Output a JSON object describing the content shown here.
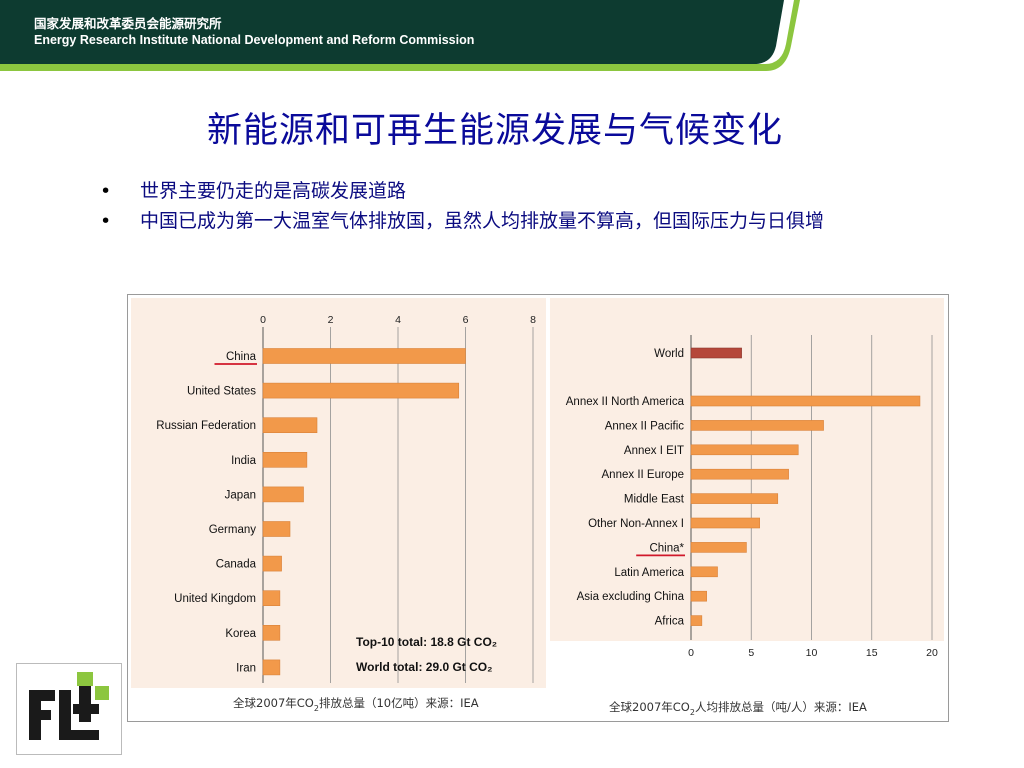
{
  "header": {
    "org_cn": "国家发展和改革委员会能源研究所",
    "org_en": "Energy Research Institute National Development and Reform Commission",
    "bg_color": "#0d3b30",
    "accent_color": "#8cc63f"
  },
  "slide": {
    "title": "新能源和可再生能源发展与气候变化",
    "bullets": [
      "世界主要仍走的是高碳发展道路",
      "中国已成为第一大温室气体排放国，虽然人均排放量不算高，但国际压力与日俱增"
    ]
  },
  "chart_data": [
    {
      "type": "bar",
      "orientation": "horizontal",
      "categories": [
        "China",
        "United States",
        "Russian Federation",
        "India",
        "Japan",
        "Germany",
        "Canada",
        "United Kingdom",
        "Korea",
        "Iran"
      ],
      "values": [
        6.0,
        5.8,
        1.6,
        1.3,
        1.2,
        0.8,
        0.55,
        0.5,
        0.5,
        0.5
      ],
      "xlim": [
        0,
        8
      ],
      "ticks": [
        "0",
        "2",
        "4",
        "6",
        "8"
      ],
      "highlight": "China",
      "annotations": [
        "Top-10 total: 18.8 Gt CO₂",
        "World total:    29.0 Gt CO₂"
      ],
      "caption_pre": "全球2007年CO",
      "caption_sub": "2",
      "caption_post": "排放总量（10亿吨）来源：IEA",
      "bar_color": "#f2994a",
      "grid": true
    },
    {
      "type": "bar",
      "orientation": "horizontal",
      "categories": [
        "World",
        "Annex II North America",
        "Annex II Pacific",
        "Annex I EIT",
        "Annex II Europe",
        "Middle East",
        "Other Non-Annex I",
        "China*",
        "Latin America",
        "Asia excluding China",
        "Africa"
      ],
      "values": [
        4.2,
        19.0,
        11.0,
        8.9,
        8.1,
        7.2,
        5.7,
        4.6,
        2.2,
        1.3,
        0.9
      ],
      "xlim": [
        0,
        20
      ],
      "ticks": [
        "0",
        "5",
        "10",
        "15",
        "20"
      ],
      "highlight": "China*",
      "caption_pre": "全球2007年CO",
      "caption_sub": "2",
      "caption_post": "人均排放总量（吨/人）来源：IEA",
      "bar_color": "#f2994a",
      "world_bar_color": "#b5473a",
      "grid": true
    }
  ]
}
